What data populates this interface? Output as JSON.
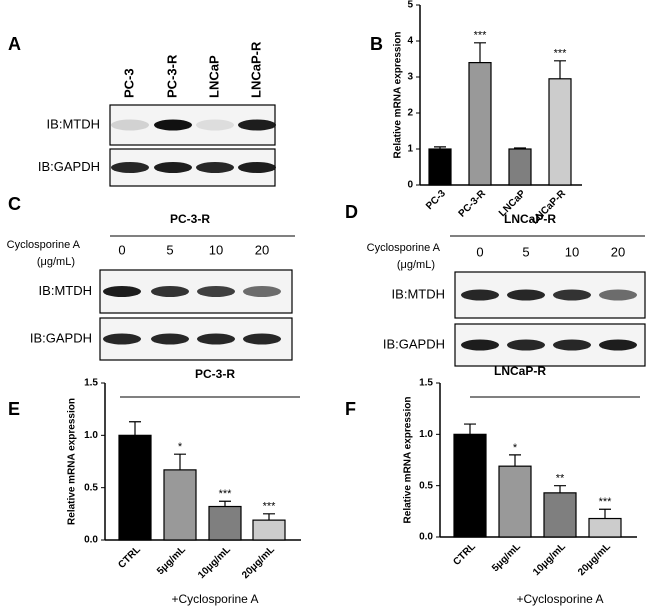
{
  "chart_data": [
    {
      "type": "bar",
      "panel": "B",
      "ylabel": "Relative mRNA expression",
      "categories": [
        "PC-3",
        "PC-3-R",
        "LNCaP",
        "LNCaP-R"
      ],
      "values": [
        1.0,
        3.4,
        1.0,
        2.95
      ],
      "errors": [
        0.06,
        0.55,
        0.03,
        0.5
      ],
      "annotations": [
        null,
        "***",
        null,
        "***"
      ],
      "colors": [
        "#000000",
        "#999999",
        "#7f7f7f",
        "#cccccc"
      ],
      "ylim": [
        0,
        5
      ],
      "yticks": [
        0,
        1,
        2,
        3,
        4,
        5
      ]
    },
    {
      "type": "bar",
      "panel": "E",
      "title": "PC-3-R",
      "ylabel": "Relative mRNA expression",
      "xlabel": "+Cyclosporine A",
      "categories": [
        "CTRL",
        "5μg/mL",
        "10μg/mL",
        "20μg/mL"
      ],
      "values": [
        1.0,
        0.67,
        0.32,
        0.19
      ],
      "errors": [
        0.13,
        0.15,
        0.05,
        0.06
      ],
      "annotations": [
        null,
        "*",
        "***",
        "***"
      ],
      "colors": [
        "#000000",
        "#999999",
        "#7f7f7f",
        "#cccccc"
      ],
      "ylim": [
        0,
        1.5
      ],
      "yticks": [
        {
          "value": 0,
          "label": "0.0"
        },
        0.5,
        {
          "value": 1,
          "label": "1.0"
        },
        1.5
      ]
    },
    {
      "type": "bar",
      "panel": "F",
      "title": "LNCaP-R",
      "ylabel": "Relative mRNA expression",
      "xlabel": "+Cyclosporine A",
      "categories": [
        "CTRL",
        "5μg/mL",
        "10μg/mL",
        "20μg/mL"
      ],
      "values": [
        1.0,
        0.69,
        0.43,
        0.18
      ],
      "errors": [
        0.1,
        0.11,
        0.07,
        0.09
      ],
      "annotations": [
        null,
        "*",
        "**",
        "***"
      ],
      "colors": [
        "#000000",
        "#999999",
        "#7f7f7f",
        "#cccccc"
      ],
      "ylim": [
        0,
        1.5
      ],
      "yticks": [
        {
          "value": 0,
          "label": "0.0"
        },
        0.5,
        {
          "value": 1,
          "label": "1.0"
        },
        1.5
      ]
    }
  ],
  "blots": [
    {
      "panel": "A",
      "lanes": [
        "PC-3",
        "PC-3-R",
        "LNCaP",
        "LNCaP-R"
      ],
      "rows": [
        "IB:MTDH",
        "IB:GAPDH"
      ]
    },
    {
      "panel": "C",
      "title": "PC-3-R",
      "treatment": "Cyclosporine A",
      "unit": "(μg/mL)",
      "doses": [
        0,
        5,
        10,
        20
      ],
      "rows": [
        "IB:MTDH",
        "IB:GAPDH"
      ]
    },
    {
      "panel": "D",
      "title": "LNCaP-R",
      "treatment": "Cyclosporine A",
      "unit": "(μg/mL)",
      "doses": [
        0,
        5,
        10,
        20
      ],
      "rows": [
        "IB:MTDH",
        "IB:GAPDH"
      ]
    }
  ]
}
